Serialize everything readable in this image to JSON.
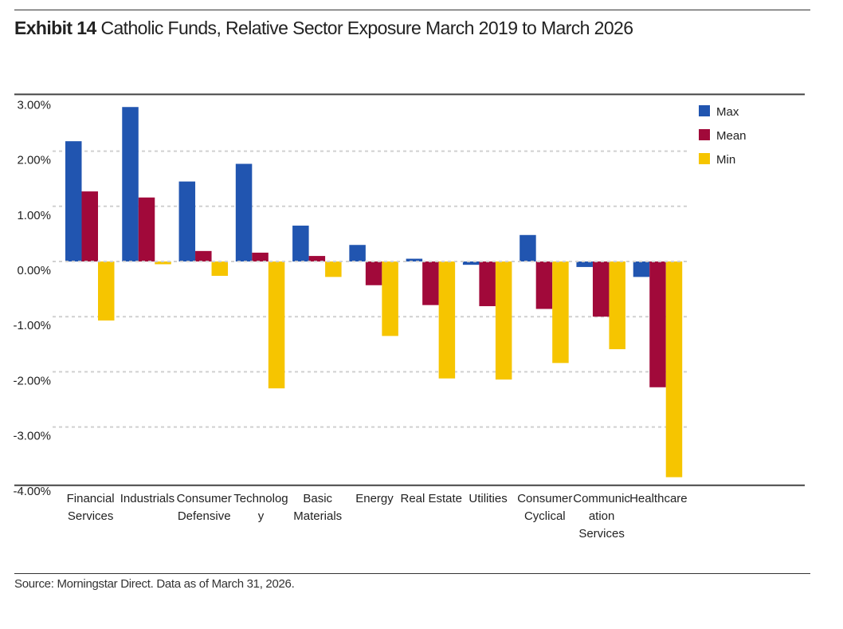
{
  "header": {
    "exhibit": "Exhibit 14",
    "title": "Catholic Funds, Relative Sector Exposure March 2019 to March 2026"
  },
  "footer": {
    "source": "Source: Morningstar Direct. Data as of March 31, 2026."
  },
  "colors": {
    "Max": "#2155b0",
    "Mean": "#a1093a",
    "Min": "#f6c500",
    "grid": "#d0d0d0",
    "axis": "#444444"
  },
  "chart_data": {
    "type": "bar",
    "title": "Catholic Funds, Relative Sector Exposure March 2019 to March 2026",
    "xlabel": "",
    "ylabel": "",
    "ylim": [
      -4,
      3
    ],
    "yticks": [
      3,
      2,
      1,
      0,
      -1,
      -2,
      -3,
      -4
    ],
    "ytick_labels": [
      "3.00%",
      "2.00%",
      "1.00%",
      "0.00%",
      "-1.00%",
      "-2.00%",
      "-3.00%",
      "-4.00%"
    ],
    "grid": true,
    "legend_position": "right",
    "categories": [
      "Financial Services",
      "Industrials",
      "Consumer Defensive",
      "Technology",
      "Basic Materials",
      "Energy",
      "Real Estate",
      "Utilities",
      "Consumer Cyclical",
      "Communication Services",
      "Healthcare"
    ],
    "category_label_lines": [
      [
        "Financial",
        "Services"
      ],
      [
        "Industrials"
      ],
      [
        "Consumer",
        "Defensive"
      ],
      [
        "Technolog",
        "y"
      ],
      [
        "Basic",
        "Materials"
      ],
      [
        "Energy"
      ],
      [
        "Real Estate"
      ],
      [
        "Utilities"
      ],
      [
        "Consumer",
        "Cyclical"
      ],
      [
        "Communic",
        "ation",
        "Services"
      ],
      [
        "Healthcare"
      ]
    ],
    "series": [
      {
        "name": "Max",
        "values": [
          2.18,
          2.8,
          1.45,
          1.77,
          0.65,
          0.3,
          0.05,
          -0.06,
          0.48,
          -0.1,
          -0.28
        ]
      },
      {
        "name": "Mean",
        "values": [
          1.27,
          1.16,
          0.19,
          0.16,
          0.1,
          -0.43,
          -0.79,
          -0.81,
          -0.86,
          -1.0,
          -2.28
        ]
      },
      {
        "name": "Min",
        "values": [
          -1.07,
          -0.05,
          -0.26,
          -2.3,
          -0.28,
          -1.35,
          -2.12,
          -2.14,
          -1.84,
          -1.59,
          -3.91
        ]
      }
    ]
  }
}
